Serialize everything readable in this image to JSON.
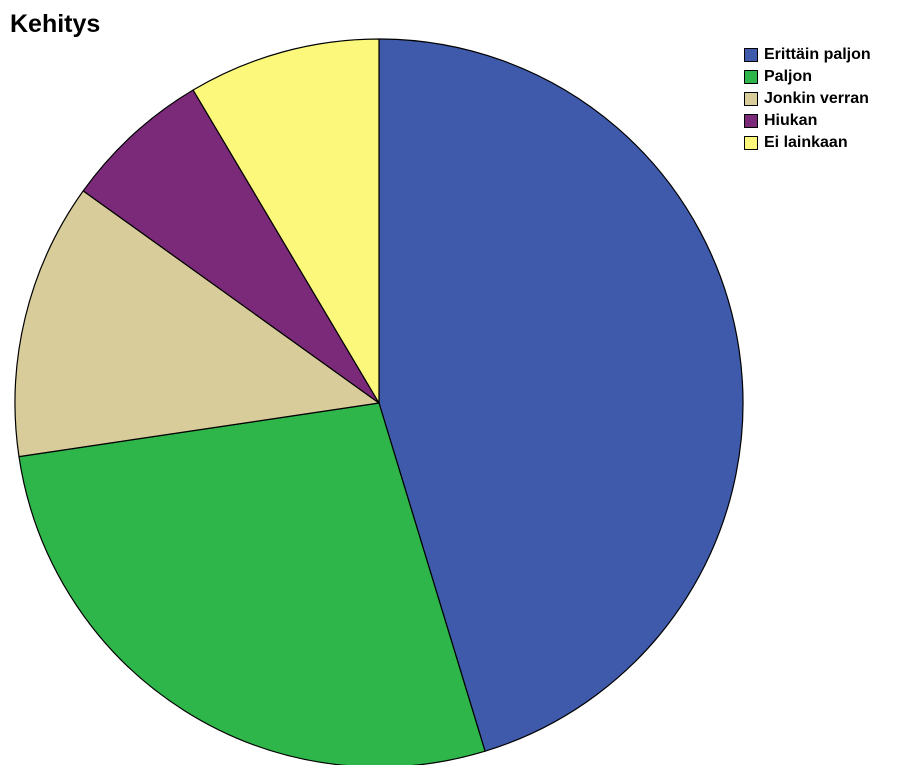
{
  "chart_data": {
    "type": "pie",
    "title": "Kehitys",
    "categories": [
      "Erittäin paljon",
      "Paljon",
      "Jonkin verran",
      "Hiukan",
      "Ei lainkaan"
    ],
    "values": [
      46.2,
      27.9,
      12.5,
      6.7,
      8.7
    ],
    "colors": [
      "#3f5aaa",
      "#2eb64a",
      "#d8cc9b",
      "#7b2a79",
      "#fbf87c"
    ],
    "start_angle_deg": 0,
    "direction": "clockwise",
    "legend_position": "top-right"
  }
}
